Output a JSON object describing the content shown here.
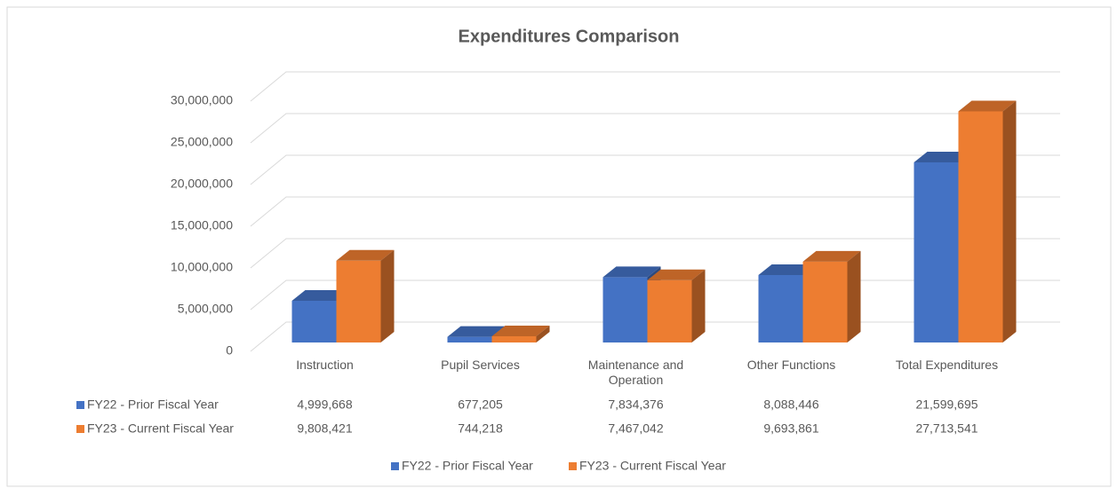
{
  "chart_data": {
    "type": "bar3d",
    "title": "Expenditures Comparison",
    "categories": [
      "Instruction",
      "Pupil Services",
      "Maintenance and Operation",
      "Other Functions",
      "Total Expenditures"
    ],
    "series": [
      {
        "name": "FY22 - Prior Fiscal Year",
        "color": "#4472c4",
        "values": [
          4999668,
          677205,
          7834376,
          8088446,
          21599695
        ],
        "value_labels": [
          "4,999,668",
          "677,205",
          "7,834,376",
          "8,088,446",
          "21,599,695"
        ]
      },
      {
        "name": "FY23 - Current Fiscal Year",
        "color": "#ed7d31",
        "values": [
          9808421,
          744218,
          7467042,
          9693861,
          27713541
        ],
        "value_labels": [
          "9,808,421",
          "744,218",
          "7,467,042",
          "9,693,861",
          "27,713,541"
        ]
      }
    ],
    "ylim": [
      0,
      30000000
    ],
    "yticks": [
      0,
      {
        "value": 5000000,
        "label": "5,000,000"
      },
      {
        "value": 10000000,
        "label": "10,000,000"
      },
      {
        "value": 15000000,
        "label": "15,000,000"
      },
      {
        "value": 20000000,
        "label": "20,000,000"
      },
      {
        "value": 25000000,
        "label": "25,000,000"
      },
      {
        "value": 30000000,
        "label": "30,000,000"
      }
    ],
    "grid": true,
    "legend": "bottom"
  }
}
